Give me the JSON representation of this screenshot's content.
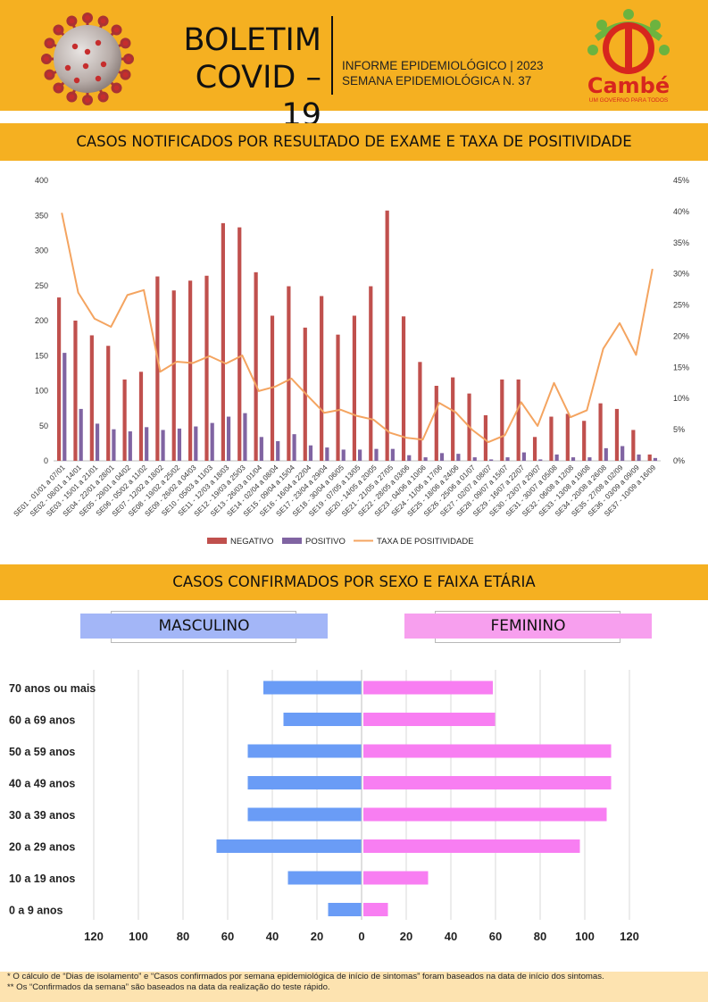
{
  "header": {
    "title_line1": "BOLETIM",
    "title_line2": "COVID – 19",
    "info_line1": "INFORME EPIDEMIOLÓGICO | 2023",
    "info_line2": "SEMANA EPIDEMIOLÓGICA  N. 37",
    "logo_text": "Cambé",
    "logo_tagline": "UM GOVERNO PARA TODOS",
    "virus_icon": "coronavirus-icon",
    "colors": {
      "banner": "#f5b021",
      "logo_red": "#d7261e",
      "logo_green": "#6cb33f"
    }
  },
  "sections": {
    "tests_title": "CASOS NOTIFICADOS POR RESULTADO DE EXAME E TAXA DE POSITIVIDADE",
    "sex_age_title": "CASOS CONFIRMADOS POR SEXO E FAIXA ETÁRIA"
  },
  "chart_data": [
    {
      "type": "bar",
      "categories": [
        "SE01 - 01/01 a 07/01",
        "SE02 - 08/01 a 14/01",
        "SE03 - 15/01 a 21/01",
        "SE04 - 22/01 a 28/01",
        "SE05 - 29/01 a 04/02",
        "SE06 - 05/02 a 11/02",
        "SE07 - 12/02 a 18/02",
        "SE08 - 19/02 a 25/02",
        "SE09 - 26/02 a 04/03",
        "SE10 - 05/03 a 11/03",
        "SE11 - 12/03 a 18/03",
        "SE12 - 19/03 a 25/03",
        "SE13 - 26/03 a 01/04",
        "SE14 - 02/04 a 08/04",
        "SE15 - 09/04 a 15/04",
        "SE16 - 16/04 a 22/04",
        "SE17 - 23/04 a 29/04",
        "SE18 - 30/04 a 06/05",
        "SE19 - 07/05 a 13/05",
        "SE20 - 14/05 a 20/05",
        "SE21 - 21/05 a 27/05",
        "SE22 - 28/05 a 03/06",
        "SE23 - 04/06 a 10/06",
        "SE24 - 11/06 a 17/06",
        "SE25 - 18/06 a 24/06",
        "SE26 - 25/06 a 01/07",
        "SE27 - 02/07 a 08/07",
        "SE28 - 09/07 a 15/07",
        "SE29 - 16/07 a 22/07",
        "SE30 - 23/07 a 29/07",
        "SE31 - 30/07 a 05/08",
        "SE32 - 06/08 a 12/08",
        "SE33 - 13/08 a 19/08",
        "SE34 - 20/08 a 26/08",
        "SE35 - 27/08 a 02/09",
        "SE36 - 03/09 a 09/09",
        "SE37 - 10/09 a 16/09"
      ],
      "series": [
        {
          "name": "NEGATIVO",
          "color": "#c0504d",
          "values": [
            233,
            200,
            179,
            164,
            116,
            127,
            263,
            243,
            257,
            264,
            339,
            333,
            269,
            207,
            249,
            190,
            235,
            180,
            207,
            249,
            357,
            206,
            141,
            107,
            119,
            96,
            65,
            116,
            116,
            34,
            63,
            67,
            57,
            82,
            74,
            44,
            9
          ]
        },
        {
          "name": "POSITIVO",
          "color": "#8064a2",
          "values": [
            154,
            74,
            53,
            45,
            42,
            48,
            44,
            46,
            49,
            54,
            63,
            68,
            34,
            28,
            38,
            22,
            19,
            16,
            16,
            17,
            17,
            8,
            5,
            11,
            10,
            5,
            2,
            5,
            12,
            2,
            9,
            5,
            5,
            18,
            21,
            9,
            4
          ]
        },
        {
          "name": "TAXA DE POSITIVIDADE",
          "color": "#f4a460",
          "axis": "right",
          "type": "line",
          "values": [
            39.8,
            27.0,
            22.8,
            21.5,
            26.6,
            27.4,
            14.3,
            15.9,
            15.7,
            16.8,
            15.6,
            16.9,
            11.2,
            11.9,
            13.2,
            10.4,
            7.7,
            8.2,
            7.2,
            6.6,
            4.5,
            3.7,
            3.4,
            9.3,
            7.8,
            5.0,
            3.0,
            4.1,
            9.4,
            5.6,
            12.5,
            7.0,
            8.1,
            18.0,
            22.1,
            17.0,
            30.8
          ]
        }
      ],
      "y_left": {
        "min": 0,
        "max": 400,
        "ticks": [
          "0",
          "50",
          "100",
          "150",
          "200",
          "250",
          "300",
          "350",
          "400"
        ]
      },
      "y_right": {
        "min": 0,
        "max": 45,
        "ticks": [
          "0%",
          "5%",
          "10%",
          "15%",
          "20%",
          "25%",
          "30%",
          "35%",
          "40%",
          "45%"
        ]
      },
      "legend": {
        "position": "bottom",
        "items": [
          "NEGATIVO",
          "POSITIVO",
          "TAXA DE POSITIVIDADE"
        ]
      },
      "grid": false
    },
    {
      "type": "bar",
      "orientation": "horizontal",
      "categories": [
        "70 anos ou mais",
        "60 a 69 anos",
        "50 a 59 anos",
        "40 a 49 anos",
        "30 a 39 anos",
        "20 a 29 anos",
        "10 a 19 anos",
        "0 a 9 anos"
      ],
      "series": [
        {
          "name": "MASCULINO",
          "color": "#6a9cf6",
          "values": [
            44,
            35,
            51,
            51,
            51,
            65,
            33,
            15
          ]
        },
        {
          "name": "FEMININO",
          "color": "#f87ef2",
          "values": [
            58,
            59,
            111,
            111,
            109,
            97,
            29,
            11
          ]
        }
      ],
      "x_ticks": [
        "120",
        "100",
        "80",
        "60",
        "40",
        "20",
        "0",
        "20",
        "40",
        "60",
        "80",
        "100",
        "120"
      ],
      "grid": true
    }
  ],
  "footer": {
    "note1": "* O cálculo de “Dias de isolamento” e “Casos confirmados por semana epidemiológica de início de sintomas” foram baseados na data de início dos sintomas.",
    "note2": "** Os “Confirmados da semana” são baseados na data da realização do teste rápido."
  }
}
